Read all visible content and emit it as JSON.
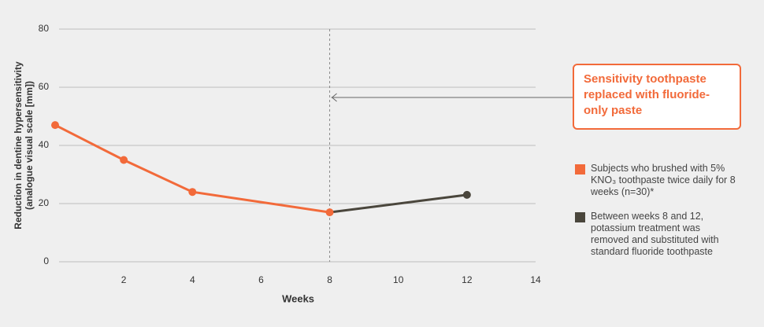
{
  "chart_data": {
    "type": "line",
    "x_label": "Weeks",
    "y_label": [
      "Reduction in dentine hypersensitivity",
      "(analogue visual scale [mm])"
    ],
    "xlim": [
      0,
      14
    ],
    "xticks": [
      2,
      4,
      6,
      8,
      10,
      12,
      14
    ],
    "ylim": [
      0,
      80
    ],
    "yticks": [
      0,
      20,
      40,
      60,
      80
    ],
    "grid": true,
    "vline": 8,
    "annotation": "Sensitivity toothpaste replaced with fluoride-only paste",
    "series": [
      {
        "name": "Subjects who brushed with 5% KNO₃ toothpaste twice daily for 8 weeks (n=30)*",
        "color": "#f26a3a",
        "x": [
          0,
          2,
          4,
          8
        ],
        "values": [
          47,
          35,
          24,
          17
        ]
      },
      {
        "name": "Between weeks 8 and 12, potassium treatment was removed and substituted with standard fluoride toothpaste",
        "color": "#4a463c",
        "x": [
          8,
          12
        ],
        "values": [
          17,
          23
        ]
      }
    ]
  }
}
